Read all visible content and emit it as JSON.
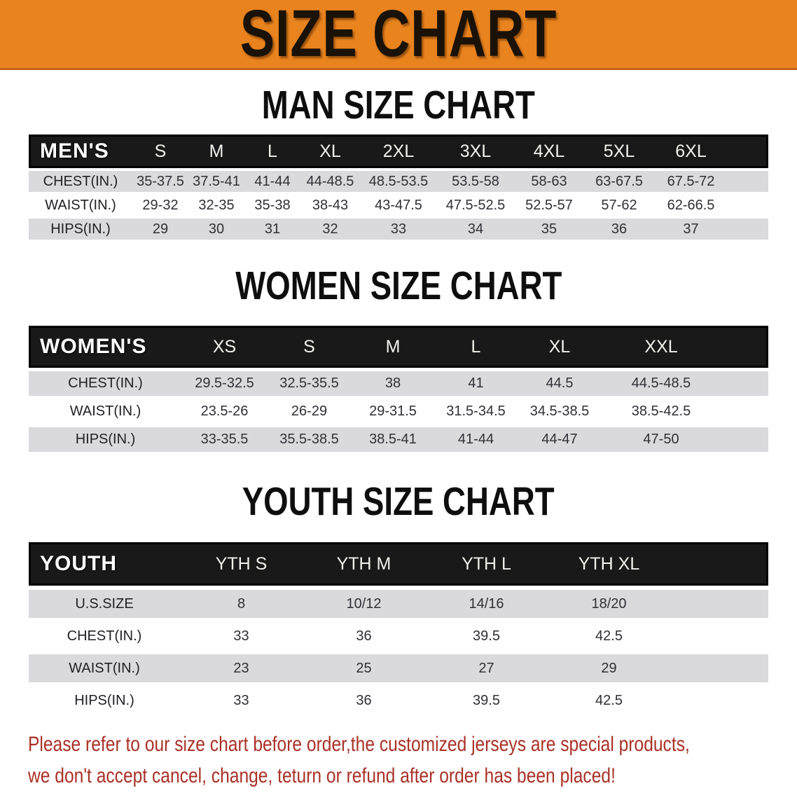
{
  "banner": {
    "title": "SIZE CHART"
  },
  "sections": [
    {
      "title": "MAN SIZE CHART",
      "table": {
        "group_label": "MEN'S",
        "columns": [
          "S",
          "M",
          "L",
          "XL",
          "2XL",
          "3XL",
          "4XL",
          "5XL",
          "6XL"
        ],
        "rows": [
          {
            "label": "CHEST(IN.)",
            "values": [
              "35-37.5",
              "37.5-41",
              "41-44",
              "44-48.5",
              "48.5-53.5",
              "53.5-58",
              "58-63",
              "63-67.5",
              "67.5-72"
            ]
          },
          {
            "label": "WAIST(IN.)",
            "values": [
              "29-32",
              "32-35",
              "35-38",
              "38-43",
              "43-47.5",
              "47.5-52.5",
              "52.5-57",
              "57-62",
              "62-66.5"
            ]
          },
          {
            "label": "HIPS(IN.)",
            "values": [
              "29",
              "30",
              "31",
              "32",
              "33",
              "34",
              "35",
              "36",
              "37"
            ]
          }
        ]
      }
    },
    {
      "title": "WOMEN SIZE CHART",
      "table": {
        "group_label": "WOMEN'S",
        "columns": [
          "XS",
          "S",
          "M",
          "L",
          "XL",
          "XXL"
        ],
        "rows": [
          {
            "label": "CHEST(IN.)",
            "values": [
              "29.5-32.5",
              "32.5-35.5",
              "38",
              "41",
              "44.5",
              "44.5-48.5"
            ]
          },
          {
            "label": "WAIST(IN.)",
            "values": [
              "23.5-26",
              "26-29",
              "29-31.5",
              "31.5-34.5",
              "34.5-38.5",
              "38.5-42.5"
            ]
          },
          {
            "label": "HIPS(IN.)",
            "values": [
              "33-35.5",
              "35.5-38.5",
              "38.5-41",
              "41-44",
              "44-47",
              "47-50"
            ]
          }
        ]
      }
    },
    {
      "title": "YOUTH SIZE CHART",
      "table": {
        "group_label": "YOUTH",
        "columns": [
          "YTH S",
          "YTH M",
          "YTH L",
          "YTH XL"
        ],
        "rows": [
          {
            "label": "U.S.SIZE",
            "values": [
              "8",
              "10/12",
              "14/16",
              "18/20"
            ]
          },
          {
            "label": "CHEST(IN.)",
            "values": [
              "33",
              "36",
              "39.5",
              "42.5"
            ]
          },
          {
            "label": "WAIST(IN.)",
            "values": [
              "23",
              "25",
              "27",
              "29"
            ]
          },
          {
            "label": "HIPS(IN.)",
            "values": [
              "33",
              "36",
              "39.5",
              "42.5"
            ]
          }
        ]
      }
    }
  ],
  "footer": {
    "line1": "Please refer to our size chart before order,the customized jerseys are special products,",
    "line2": "we don't accept cancel, change, teturn or refund after order has been placed!"
  },
  "colors": {
    "banner_orange": "#E8831E",
    "banner_border": "#C4641B",
    "header_black": "#191919",
    "row_gray": "#DADADD",
    "row_white": "#FEFEFE",
    "disclaimer_red": "#A93126"
  }
}
